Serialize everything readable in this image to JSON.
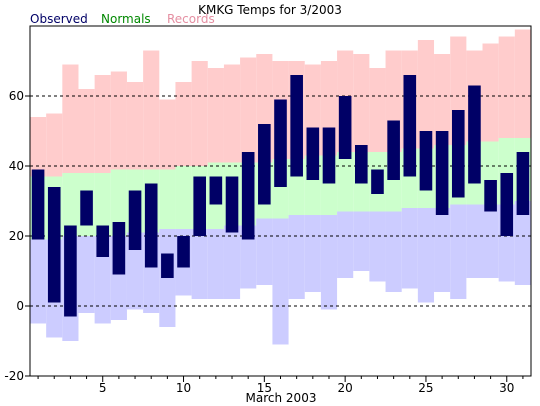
{
  "chart_data": {
    "type": "bar",
    "title": "KMKG Temps for 3/2003",
    "xlabel": "March 2003",
    "ylabel": "",
    "ylim": [
      -20,
      80
    ],
    "xlim": [
      0.5,
      31.5
    ],
    "yticks": [
      -20,
      0,
      20,
      40,
      60
    ],
    "xticks": [
      5,
      10,
      15,
      20,
      25,
      30
    ],
    "gridlines": "horizontal dashed at y ticks",
    "legend": {
      "placement": "top-left, above plot",
      "items": [
        {
          "name": "Observed",
          "color": "#000066"
        },
        {
          "name": "Normals",
          "color": "#008800"
        },
        {
          "name": "Records",
          "color": "#e58fa2"
        }
      ]
    },
    "colors": {
      "observed": "#000066",
      "normals": "#ccffcc",
      "record_high_band": "#ffcccc",
      "record_low_band": "#ccccff"
    },
    "days": [
      1,
      2,
      3,
      4,
      5,
      6,
      7,
      8,
      9,
      10,
      11,
      12,
      13,
      14,
      15,
      16,
      17,
      18,
      19,
      20,
      21,
      22,
      23,
      24,
      25,
      26,
      27,
      28,
      29,
      30,
      31
    ],
    "series": [
      {
        "name": "Observed",
        "high": [
          39,
          34,
          23,
          33,
          23,
          24,
          33,
          35,
          15,
          20,
          37,
          37,
          37,
          44,
          52,
          59,
          66,
          51,
          51,
          60,
          46,
          39,
          53,
          66,
          50,
          50,
          56,
          63,
          36,
          38,
          44
        ],
        "low": [
          19,
          1,
          -3,
          23,
          14,
          9,
          16,
          11,
          8,
          11,
          20,
          29,
          21,
          19,
          29,
          34,
          37,
          36,
          35,
          42,
          35,
          32,
          36,
          37,
          33,
          26,
          31,
          35,
          27,
          20,
          26
        ]
      },
      {
        "name": "Normals",
        "high": [
          37,
          37,
          38,
          38,
          38,
          39,
          39,
          39,
          39,
          40,
          40,
          41,
          41,
          41,
          41,
          42,
          42,
          43,
          43,
          44,
          44,
          44,
          44,
          45,
          45,
          46,
          46,
          47,
          47,
          48,
          48
        ],
        "low": [
          19,
          19,
          20,
          20,
          20,
          20,
          21,
          21,
          22,
          22,
          22,
          22,
          23,
          23,
          25,
          25,
          26,
          26,
          26,
          27,
          27,
          27,
          27,
          28,
          28,
          28,
          29,
          29,
          29,
          29,
          30
        ]
      },
      {
        "name": "Records",
        "high": [
          54,
          55,
          69,
          62,
          66,
          67,
          64,
          73,
          59,
          64,
          70,
          68,
          69,
          71,
          72,
          70,
          70,
          69,
          70,
          73,
          72,
          68,
          73,
          73,
          76,
          72,
          77,
          73,
          75,
          77,
          79
        ],
        "low": [
          -5,
          -9,
          -10,
          -2,
          -5,
          -4,
          -1,
          -2,
          -6,
          3,
          2,
          2,
          2,
          5,
          6,
          -11,
          2,
          4,
          -1,
          8,
          10,
          7,
          4,
          5,
          1,
          4,
          2,
          8,
          8,
          7,
          6
        ]
      }
    ]
  }
}
